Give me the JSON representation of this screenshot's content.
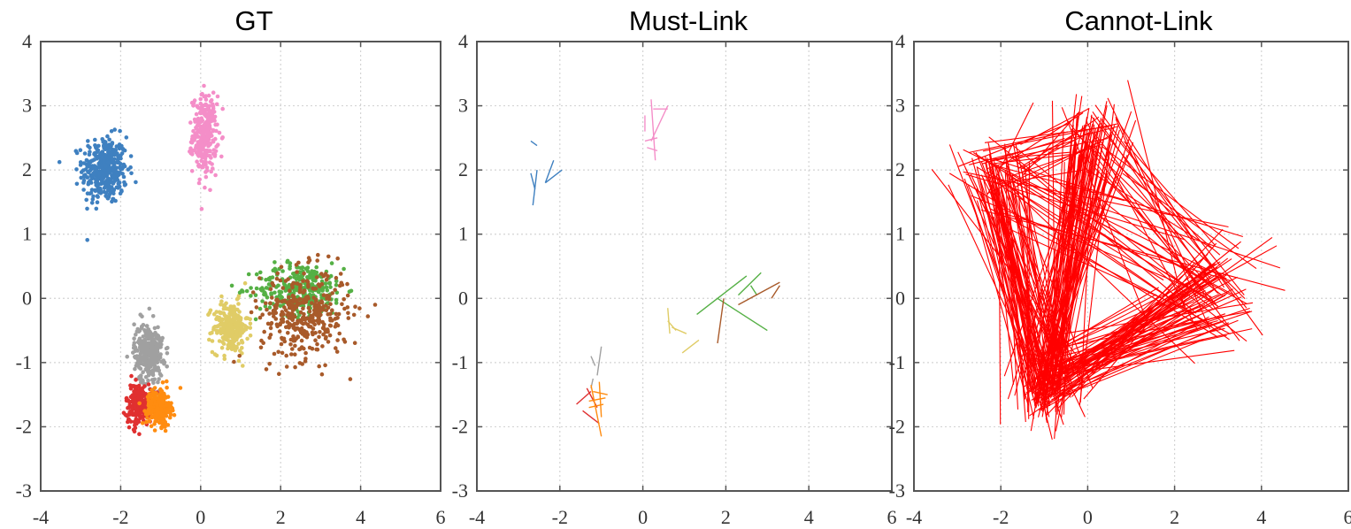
{
  "chart_data": [
    {
      "type": "scatter",
      "title": "GT",
      "xlim": [
        -4,
        6
      ],
      "ylim": [
        -3,
        4
      ],
      "xticks": [
        -4,
        -2,
        0,
        2,
        4,
        6
      ],
      "yticks": [
        -3,
        -2,
        -1,
        0,
        1,
        2,
        3,
        4
      ],
      "grid": true,
      "clusters": [
        {
          "color": "#3f80c0",
          "cx": -2.4,
          "cy": 2.0,
          "sx": 0.28,
          "sy": 0.26,
          "n": 380
        },
        {
          "color": "#f48ec8",
          "cx": 0.1,
          "cy": 2.55,
          "sx": 0.15,
          "sy": 0.3,
          "n": 300
        },
        {
          "color": "#e0cc66",
          "cx": 0.75,
          "cy": -0.45,
          "sx": 0.22,
          "sy": 0.2,
          "n": 260
        },
        {
          "color": "#55b045",
          "cx": 2.5,
          "cy": 0.15,
          "sx": 0.55,
          "sy": 0.2,
          "n": 300
        },
        {
          "color": "#a85a2a",
          "cx": 2.6,
          "cy": -0.25,
          "sx": 0.55,
          "sy": 0.35,
          "n": 380
        },
        {
          "color": "#a0a0a0",
          "cx": -1.3,
          "cy": -0.85,
          "sx": 0.18,
          "sy": 0.24,
          "n": 300
        },
        {
          "color": "#e03030",
          "cx": -1.55,
          "cy": -1.65,
          "sx": 0.16,
          "sy": 0.16,
          "n": 220
        },
        {
          "color": "#ff8c10",
          "cx": -1.05,
          "cy": -1.7,
          "sx": 0.15,
          "sy": 0.14,
          "n": 260
        }
      ]
    },
    {
      "type": "line",
      "title": "Must-Link",
      "xlim": [
        -4,
        6
      ],
      "ylim": [
        -3,
        4
      ],
      "xticks": [
        -4,
        -2,
        0,
        2,
        4,
        6
      ],
      "yticks": [
        -3,
        -2,
        -1,
        0,
        1,
        2,
        3,
        4
      ],
      "grid": true,
      "segments": [
        {
          "color": "#3f80c0",
          "x1": -2.7,
          "y1": 2.45,
          "x2": -2.55,
          "y2": 2.38
        },
        {
          "color": "#3f80c0",
          "x1": -2.65,
          "y1": 1.45,
          "x2": -2.55,
          "y2": 2.0
        },
        {
          "color": "#3f80c0",
          "x1": -2.7,
          "y1": 1.95,
          "x2": -2.6,
          "y2": 1.7
        },
        {
          "color": "#3f80c0",
          "x1": -2.35,
          "y1": 1.8,
          "x2": -2.15,
          "y2": 2.15
        },
        {
          "color": "#3f80c0",
          "x1": -2.35,
          "y1": 1.8,
          "x2": -1.95,
          "y2": 2.0
        },
        {
          "color": "#f48ec8",
          "x1": 0.05,
          "y1": 2.85,
          "x2": 0.05,
          "y2": 2.6
        },
        {
          "color": "#f48ec8",
          "x1": 0.2,
          "y1": 3.1,
          "x2": 0.3,
          "y2": 2.15
        },
        {
          "color": "#f48ec8",
          "x1": 0.25,
          "y1": 2.95,
          "x2": 0.6,
          "y2": 2.95
        },
        {
          "color": "#f48ec8",
          "x1": 0.2,
          "y1": 2.45,
          "x2": 0.6,
          "y2": 3.0
        },
        {
          "color": "#f48ec8",
          "x1": 0.05,
          "y1": 2.45,
          "x2": 0.35,
          "y2": 2.5
        },
        {
          "color": "#f48ec8",
          "x1": 0.1,
          "y1": 2.35,
          "x2": 0.35,
          "y2": 2.3
        },
        {
          "color": "#e0cc66",
          "x1": 0.6,
          "y1": -0.15,
          "x2": 0.65,
          "y2": -0.55
        },
        {
          "color": "#e0cc66",
          "x1": 0.6,
          "y1": -0.35,
          "x2": 0.8,
          "y2": -0.5
        },
        {
          "color": "#e0cc66",
          "x1": 0.7,
          "y1": -0.45,
          "x2": 1.05,
          "y2": -0.55
        },
        {
          "color": "#e0cc66",
          "x1": 0.95,
          "y1": -0.85,
          "x2": 1.35,
          "y2": -0.65
        },
        {
          "color": "#55b045",
          "x1": 1.3,
          "y1": -0.25,
          "x2": 2.5,
          "y2": 0.35
        },
        {
          "color": "#55b045",
          "x1": 1.8,
          "y1": 0.0,
          "x2": 3.0,
          "y2": -0.5
        },
        {
          "color": "#55b045",
          "x1": 2.3,
          "y1": 0.05,
          "x2": 2.85,
          "y2": 0.4
        },
        {
          "color": "#55b045",
          "x1": 2.6,
          "y1": 0.2,
          "x2": 2.75,
          "y2": 0.05
        },
        {
          "color": "#a85a2a",
          "x1": 1.95,
          "y1": 0.0,
          "x2": 1.8,
          "y2": -0.7
        },
        {
          "color": "#a85a2a",
          "x1": 2.3,
          "y1": -0.1,
          "x2": 3.3,
          "y2": 0.25
        },
        {
          "color": "#a85a2a",
          "x1": 3.1,
          "y1": 0.0,
          "x2": 3.3,
          "y2": 0.2
        },
        {
          "color": "#a0a0a0",
          "x1": -1.25,
          "y1": -0.9,
          "x2": -1.15,
          "y2": -1.05
        },
        {
          "color": "#a0a0a0",
          "x1": -1.0,
          "y1": -0.75,
          "x2": -1.1,
          "y2": -1.2
        },
        {
          "color": "#a0a0a0",
          "x1": -1.2,
          "y1": -1.25,
          "x2": -1.25,
          "y2": -1.4
        },
        {
          "color": "#e03030",
          "x1": -1.6,
          "y1": -1.65,
          "x2": -1.25,
          "y2": -1.45
        },
        {
          "color": "#e03030",
          "x1": -1.45,
          "y1": -1.75,
          "x2": -1.05,
          "y2": -1.95
        },
        {
          "color": "#e03030",
          "x1": -1.35,
          "y1": -1.4,
          "x2": -1.1,
          "y2": -1.7
        },
        {
          "color": "#ff8c10",
          "x1": -1.25,
          "y1": -1.35,
          "x2": -1.0,
          "y2": -2.15
        },
        {
          "color": "#ff8c10",
          "x1": -1.3,
          "y1": -1.6,
          "x2": -0.9,
          "y2": -1.55
        },
        {
          "color": "#ff8c10",
          "x1": -1.2,
          "y1": -1.45,
          "x2": -0.85,
          "y2": -1.5
        },
        {
          "color": "#ff8c10",
          "x1": -1.05,
          "y1": -1.3,
          "x2": -1.0,
          "y2": -1.85
        },
        {
          "color": "#ff8c10",
          "x1": -1.3,
          "y1": -1.7,
          "x2": -0.95,
          "y2": -1.65
        }
      ]
    },
    {
      "type": "line",
      "title": "Cannot-Link",
      "xlim": [
        -4,
        6
      ],
      "ylim": [
        -3,
        4
      ],
      "xticks": [
        -4,
        -2,
        0,
        2,
        4,
        6
      ],
      "yticks": [
        -3,
        -2,
        -1,
        0,
        1,
        2,
        3,
        4
      ],
      "grid": true,
      "line_color": "#ff0000",
      "num_links": 260,
      "link_groups": [
        {
          "from": [
            -2.2,
            1.95
          ],
          "to": [
            -0.95,
            -1.45
          ],
          "spread_from": [
            0.45,
            0.28
          ],
          "spread_to": [
            0.35,
            0.3
          ],
          "weight": 3
        },
        {
          "from": [
            0.1,
            2.55
          ],
          "to": [
            -0.95,
            -1.45
          ],
          "spread_from": [
            0.45,
            0.3
          ],
          "spread_to": [
            0.35,
            0.3
          ],
          "weight": 3
        },
        {
          "from": [
            -0.95,
            -1.35
          ],
          "to": [
            3.0,
            0.05
          ],
          "spread_from": [
            0.35,
            0.3
          ],
          "spread_to": [
            0.65,
            0.4
          ],
          "weight": 3
        },
        {
          "from": [
            -2.2,
            1.95
          ],
          "to": [
            3.0,
            0.05
          ],
          "spread_from": [
            0.45,
            0.28
          ],
          "spread_to": [
            0.65,
            0.4
          ],
          "weight": 1
        },
        {
          "from": [
            0.1,
            2.55
          ],
          "to": [
            3.0,
            0.05
          ],
          "spread_from": [
            0.45,
            0.3
          ],
          "spread_to": [
            0.65,
            0.4
          ],
          "weight": 1
        },
        {
          "from": [
            -2.2,
            1.95
          ],
          "to": [
            0.1,
            2.55
          ],
          "spread_from": [
            0.45,
            0.28
          ],
          "spread_to": [
            0.45,
            0.3
          ],
          "weight": 1
        }
      ]
    }
  ]
}
